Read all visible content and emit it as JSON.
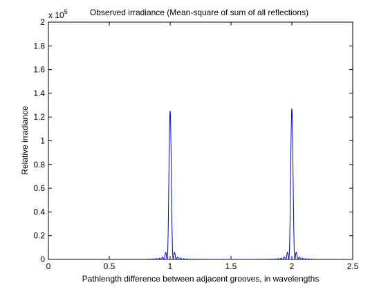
{
  "chart_data": {
    "type": "line",
    "title": "Observed irradiance  (Mean-square of sum of all reflections)",
    "xlabel": "Pathlength difference between adjacent grooves, in wavelengths",
    "ylabel": "Relative irradiance",
    "y_multiplier": "x 10",
    "y_multiplier_exp": "5",
    "xlim": [
      0,
      2.5
    ],
    "ylim": [
      0,
      2
    ],
    "xticks": [
      0,
      0.5,
      1,
      1.5,
      2,
      2.5
    ],
    "xtick_labels": [
      "0",
      "0.5",
      "1",
      "1.5",
      "2",
      "2.5"
    ],
    "yticks": [
      0,
      0.2,
      0.4,
      0.6,
      0.8,
      1,
      1.2,
      1.4,
      1.6,
      1.8,
      2
    ],
    "ytick_labels": [
      "0",
      "0.2",
      "0.4",
      "0.6",
      "0.8",
      "1",
      "1.2",
      "1.4",
      "1.6",
      "1.8",
      "2"
    ],
    "grid": false,
    "series": [
      {
        "color": "#0000cc",
        "x_range": [
          0.8,
          2.2
        ],
        "peaks": [
          {
            "x": 1.0,
            "y": 1.25
          },
          {
            "x": 2.0,
            "y": 1.27
          }
        ]
      }
    ]
  }
}
